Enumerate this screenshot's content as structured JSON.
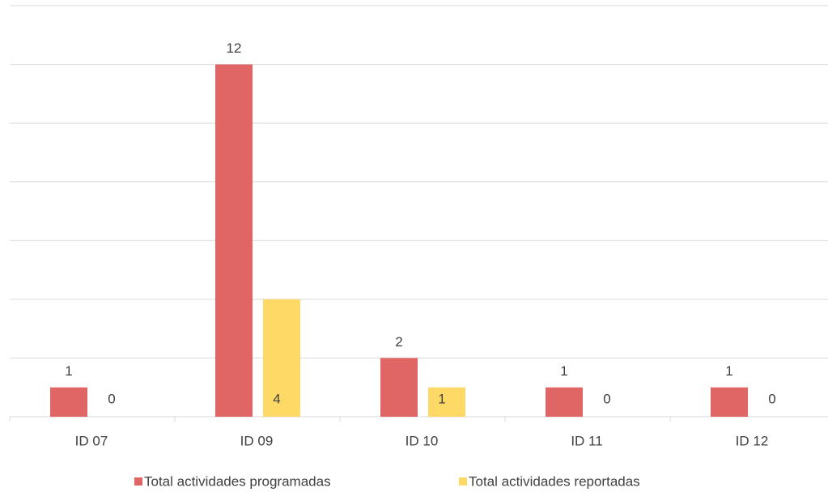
{
  "chart_data": {
    "type": "bar",
    "categories": [
      "ID 07",
      "ID 09",
      "ID 10",
      "ID 11",
      "ID 12"
    ],
    "series": [
      {
        "name": "Total actividades programadas",
        "color": "#e06666",
        "values": [
          1,
          12,
          2,
          1,
          1
        ]
      },
      {
        "name": "Total actividades reportadas",
        "color": "#ffd966",
        "values": [
          0,
          4,
          1,
          0,
          0
        ]
      }
    ],
    "ylim": [
      0,
      14
    ],
    "yticks": [
      0,
      2,
      4,
      6,
      8,
      10,
      12,
      14
    ],
    "grid": true,
    "legend": "bottom"
  }
}
